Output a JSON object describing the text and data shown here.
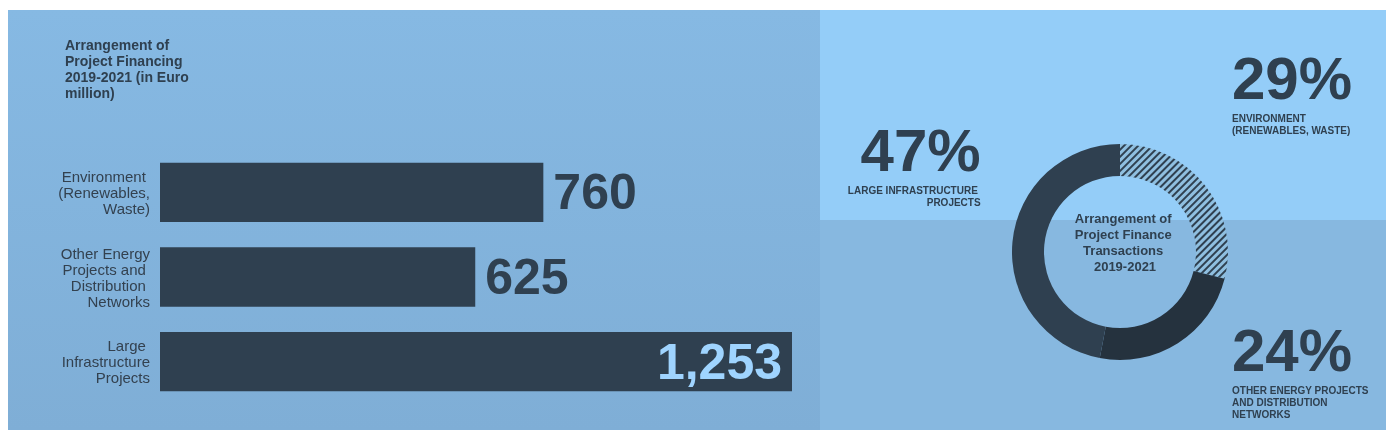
{
  "chart_data": [
    {
      "type": "bar",
      "orientation": "horizontal",
      "title": "Arrangement of Project Financing 2019-2021 (in Euro million)",
      "categories": [
        "Environment (Renewables, Waste)",
        "Other Energy Projects and Distribution Networks",
        "Large Infrastructure Projects"
      ],
      "values": [
        760,
        625,
        1253
      ],
      "value_labels": [
        "760",
        "625",
        "1,253"
      ],
      "color": "#2f4050"
    },
    {
      "type": "donut",
      "title": "Arrangement of Project Finance Transactions 2019-2021",
      "categories": [
        "ENVIRONMENT (RENEWABLES, WASTE)",
        "OTHER ENERGY PROJECTS AND DISTRIBUTION NETWORKS",
        "LARGE INFRASTRUCTURE PROJECTS"
      ],
      "values": [
        29,
        24,
        47
      ],
      "value_labels": [
        "29%",
        "24%",
        "47%"
      ],
      "colors": [
        "#8fbfe0",
        "#25323e",
        "#2f4050"
      ]
    }
  ]
}
